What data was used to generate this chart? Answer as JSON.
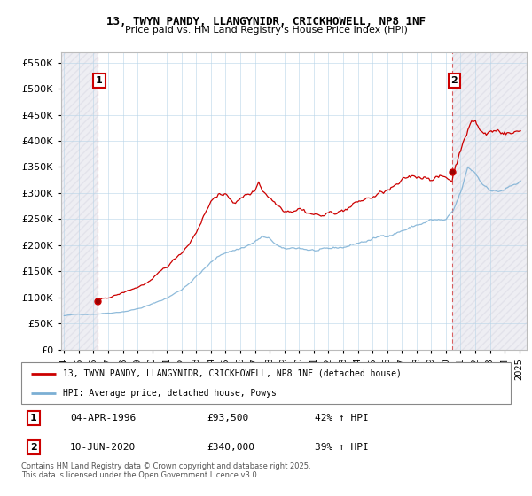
{
  "title1": "13, TWYN PANDY, LLANGYNIDR, CRICKHOWELL, NP8 1NF",
  "title2": "Price paid vs. HM Land Registry's House Price Index (HPI)",
  "legend_line1": "13, TWYN PANDY, LLANGYNIDR, CRICKHOWELL, NP8 1NF (detached house)",
  "legend_line2": "HPI: Average price, detached house, Powys",
  "annotation1_date": "04-APR-1996",
  "annotation1_price": "£93,500",
  "annotation1_hpi": "42% ↑ HPI",
  "annotation2_date": "10-JUN-2020",
  "annotation2_price": "£340,000",
  "annotation2_hpi": "39% ↑ HPI",
  "footnote": "Contains HM Land Registry data © Crown copyright and database right 2025.\nThis data is licensed under the Open Government Licence v3.0.",
  "red_color": "#cc0000",
  "blue_color": "#7bafd4",
  "ylim": [
    0,
    570000
  ],
  "yticks": [
    0,
    50000,
    100000,
    150000,
    200000,
    250000,
    300000,
    350000,
    400000,
    450000,
    500000,
    550000
  ],
  "purchase1_x": 1996.25,
  "purchase1_y": 93500,
  "purchase2_x": 2020.42,
  "purchase2_y": 340000,
  "xlim_left": 1993.8,
  "xlim_right": 2025.5
}
